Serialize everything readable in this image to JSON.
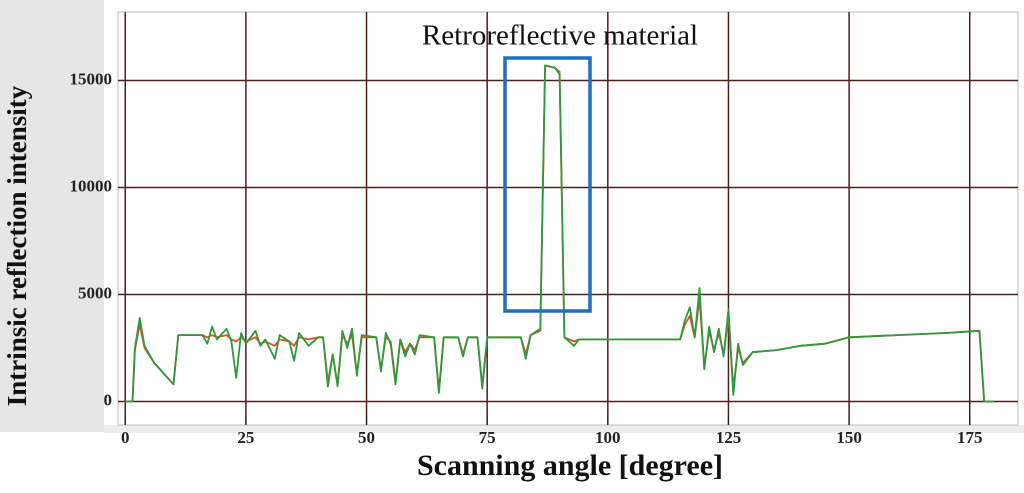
{
  "chart_data": {
    "type": "line",
    "annotation": "Retroreflective material",
    "x_label": "Scanning angle [degree]",
    "y_label": "Intrinsic reflection intensity",
    "xlim": [
      -1.5,
      185
    ],
    "ylim": [
      -1100,
      18200
    ],
    "xticks": [
      0,
      25,
      50,
      75,
      100,
      125,
      150,
      175
    ],
    "yticks": [
      0,
      5000,
      10000,
      15000
    ],
    "grid": true,
    "x": [
      0,
      1.5,
      2,
      3,
      4,
      6,
      8,
      10,
      11,
      16,
      17,
      18,
      19,
      21,
      22,
      23,
      24,
      25,
      27,
      28,
      29,
      31,
      32,
      34,
      35,
      36,
      38,
      40,
      41,
      42,
      43,
      44,
      45,
      46,
      47,
      48,
      49,
      52,
      53,
      54,
      55,
      56,
      57,
      58,
      59,
      60,
      61,
      64,
      65,
      66,
      69,
      70,
      71,
      73,
      74,
      75,
      82,
      83,
      84,
      86,
      87,
      89,
      90,
      91,
      93,
      94,
      100,
      110,
      115,
      116,
      117,
      118,
      119,
      120,
      121,
      122,
      123,
      124,
      125,
      126,
      127,
      128,
      130,
      135,
      140,
      145,
      150,
      160,
      170,
      177,
      178,
      180
    ],
    "series": [
      {
        "color": "#e0502a",
        "values": [
          0,
          0,
          2400,
          3600,
          2500,
          1800,
          1300,
          800,
          3100,
          3100,
          3000,
          3100,
          3000,
          3100,
          2900,
          2800,
          3000,
          2800,
          3000,
          2700,
          2800,
          2600,
          2900,
          2800,
          2600,
          3000,
          2900,
          3000,
          3000,
          900,
          2200,
          800,
          3100,
          2700,
          3100,
          1300,
          3000,
          3000,
          1500,
          3000,
          2800,
          900,
          2900,
          2300,
          2700,
          2400,
          3000,
          3000,
          500,
          3000,
          3000,
          2200,
          3000,
          3000,
          700,
          3000,
          3000,
          2200,
          3100,
          3300,
          15700,
          15600,
          15400,
          3000,
          2800,
          2900,
          2900,
          2900,
          2900,
          3600,
          4000,
          3000,
          4800,
          1600,
          3300,
          2400,
          3200,
          2200,
          4000,
          600,
          2500,
          1800,
          2300,
          2400,
          2600,
          2700,
          3000,
          3100,
          3200,
          3300,
          0,
          0
        ]
      },
      {
        "color": "#2e9a3c",
        "values": [
          0,
          0,
          2500,
          3900,
          2600,
          1800,
          1300,
          800,
          3100,
          3100,
          2700,
          3500,
          2900,
          3400,
          2800,
          1100,
          3200,
          2700,
          3300,
          2600,
          2900,
          2000,
          3100,
          2800,
          1900,
          3200,
          2600,
          3000,
          3000,
          700,
          2200,
          700,
          3300,
          2500,
          3400,
          1200,
          3100,
          3000,
          1400,
          3200,
          2700,
          800,
          2900,
          2100,
          2700,
          2200,
          3100,
          3000,
          400,
          3000,
          3000,
          2100,
          3000,
          3000,
          600,
          3000,
          3000,
          2000,
          3100,
          3400,
          15700,
          15600,
          15300,
          3000,
          2600,
          2900,
          2900,
          2900,
          2900,
          3800,
          4400,
          3000,
          5300,
          1500,
          3500,
          2300,
          3400,
          2100,
          4300,
          300,
          2700,
          1700,
          2300,
          2400,
          2600,
          2700,
          3000,
          3100,
          3200,
          3300,
          0,
          0
        ]
      }
    ]
  }
}
